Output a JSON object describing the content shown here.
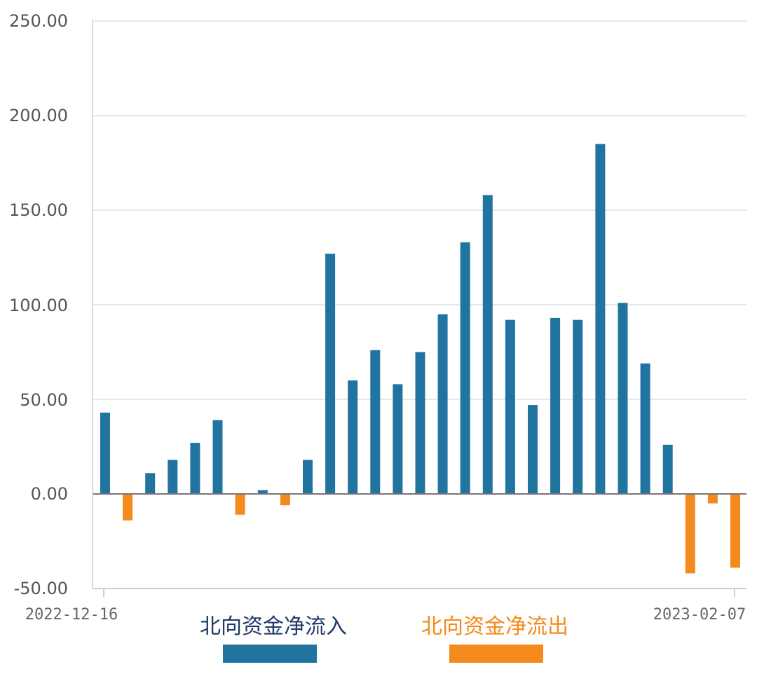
{
  "chart_data": {
    "type": "bar",
    "x_tick_labels": [
      "2022-12-16",
      "2023-02-07"
    ],
    "y_tick_labels": [
      "250.00",
      "200.00",
      "150.00",
      "100.00",
      "50.00",
      "0.00",
      "-50.00"
    ],
    "ylim": [
      -50,
      250
    ],
    "yticks": [
      250,
      200,
      150,
      100,
      50,
      0,
      -50
    ],
    "grid": true,
    "legend_position": "bottom",
    "values": [
      43,
      -14,
      11,
      18,
      27,
      39,
      -11,
      2,
      -6,
      18,
      127,
      60,
      76,
      58,
      75,
      95,
      133,
      158,
      92,
      47,
      93,
      92,
      185,
      101,
      69,
      26,
      -42,
      -5,
      -39
    ],
    "series": [
      {
        "name": "北向资金净流入",
        "color": "#21749F",
        "sign": "positive"
      },
      {
        "name": "北向资金净流出",
        "color": "#F48A1C",
        "sign": "negative"
      }
    ],
    "legend_label_colors": [
      "#1F3A66",
      "#F48A1C"
    ]
  }
}
